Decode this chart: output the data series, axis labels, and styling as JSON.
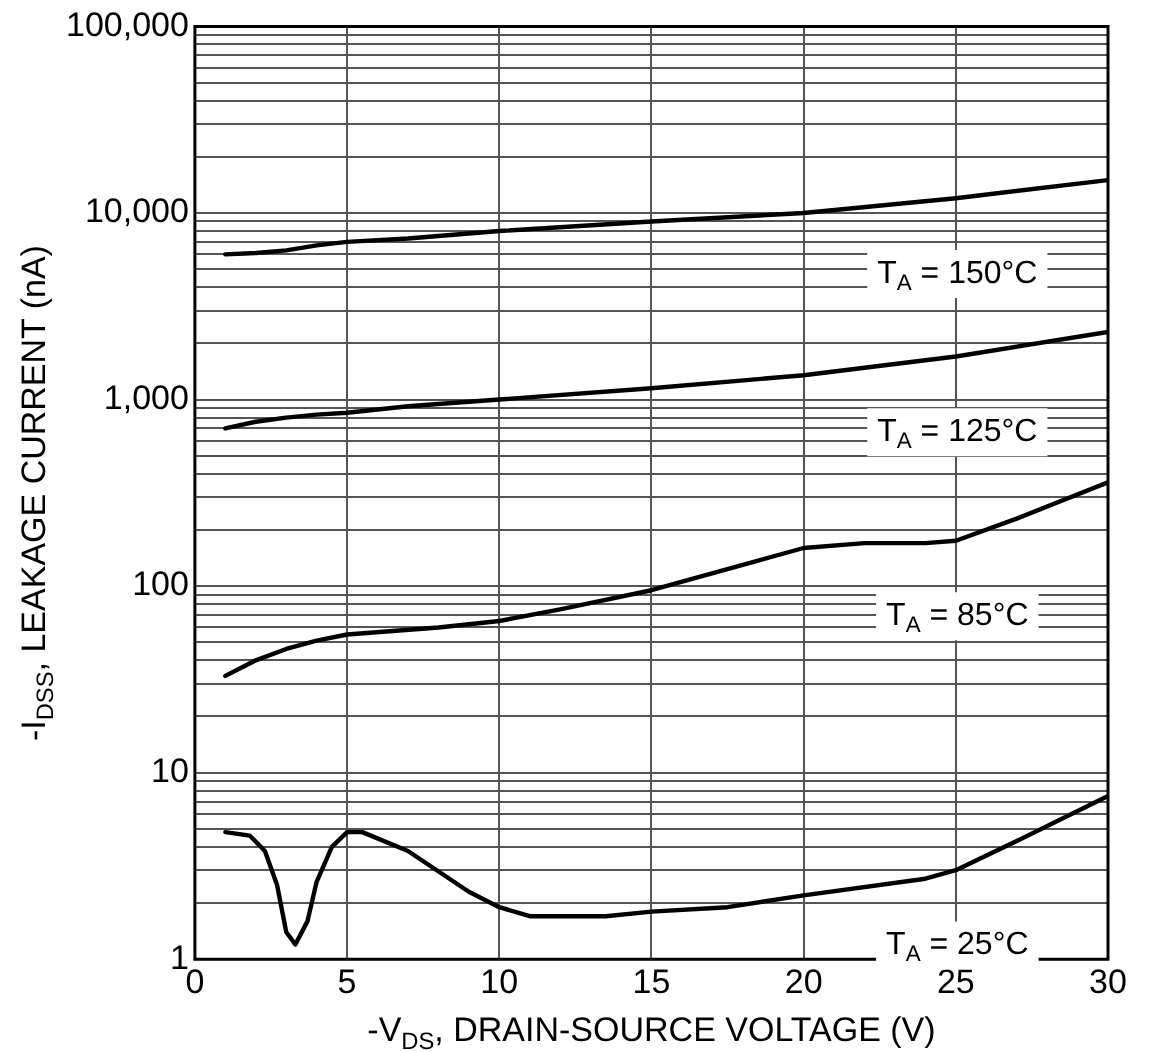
{
  "chart_data": {
    "type": "line",
    "xlabel": "-V$_{DS}$, DRAIN-SOURCE VOLTAGE (V)",
    "ylabel": "-I$_{DSS}$, LEAKAGE CURRENT (nA)",
    "log": "y",
    "grid": true,
    "legend": false,
    "marker": "none",
    "line_style": "solid",
    "xlim": [
      0,
      30
    ],
    "xticks": [
      0,
      5,
      10,
      15,
      20,
      25,
      30
    ],
    "ylim": [
      1,
      100000
    ],
    "yticks": [
      {
        "value": 1,
        "label": "1"
      },
      {
        "value": 2,
        "label": null
      },
      {
        "value": 3,
        "label": null
      },
      {
        "value": 4,
        "label": null
      },
      {
        "value": 5,
        "label": null
      },
      {
        "value": 6,
        "label": null
      },
      {
        "value": 7,
        "label": null
      },
      {
        "value": 8,
        "label": null
      },
      {
        "value": 9,
        "label": null
      },
      {
        "value": 10,
        "label": "10"
      },
      {
        "value": 20,
        "label": null
      },
      {
        "value": 30,
        "label": null
      },
      {
        "value": 40,
        "label": null
      },
      {
        "value": 50,
        "label": null
      },
      {
        "value": 60,
        "label": null
      },
      {
        "value": 70,
        "label": null
      },
      {
        "value": 80,
        "label": null
      },
      {
        "value": 90,
        "label": null
      },
      {
        "value": 100,
        "label": "100"
      },
      {
        "value": 200,
        "label": null
      },
      {
        "value": 300,
        "label": null
      },
      {
        "value": 400,
        "label": null
      },
      {
        "value": 500,
        "label": null
      },
      {
        "value": 600,
        "label": null
      },
      {
        "value": 700,
        "label": null
      },
      {
        "value": 800,
        "label": null
      },
      {
        "value": 900,
        "label": null
      },
      {
        "value": 1000,
        "label": "1,000"
      },
      {
        "value": 2000,
        "label": null
      },
      {
        "value": 3000,
        "label": null
      },
      {
        "value": 4000,
        "label": null
      },
      {
        "value": 5000,
        "label": null
      },
      {
        "value": 6000,
        "label": null
      },
      {
        "value": 7000,
        "label": null
      },
      {
        "value": 8000,
        "label": null
      },
      {
        "value": 9000,
        "label": null
      },
      {
        "value": 10000,
        "label": "10,000"
      },
      {
        "value": 20000,
        "label": null
      },
      {
        "value": 30000,
        "label": null
      },
      {
        "value": 40000,
        "label": null
      },
      {
        "value": 50000,
        "label": null
      },
      {
        "value": 60000,
        "label": null
      },
      {
        "value": 70000,
        "label": null
      },
      {
        "value": 80000,
        "label": null
      },
      {
        "value": 90000,
        "label": null
      },
      {
        "value": 100000,
        "label": "100,000"
      }
    ],
    "series": [
      {
        "name": "T$_{A}$ = 150°C",
        "color": "#000000",
        "x": [
          1,
          2,
          3,
          4,
          5,
          7,
          10,
          15,
          20,
          25,
          30
        ],
        "values": [
          6000,
          6100,
          6300,
          6700,
          7000,
          7300,
          8000,
          9000,
          10000,
          12000,
          15000
        ]
      },
      {
        "name": "T$_{A}$ = 125°C",
        "color": "#000000",
        "x": [
          1,
          2,
          3,
          4,
          5,
          7,
          10,
          15,
          20,
          25,
          30
        ],
        "values": [
          700,
          760,
          800,
          830,
          850,
          920,
          1000,
          1150,
          1350,
          1700,
          2300
        ]
      },
      {
        "name": "T$_{A}$ = 85°C",
        "color": "#000000",
        "x": [
          1,
          2,
          3,
          4,
          5,
          8,
          10,
          12,
          15,
          18,
          20,
          22,
          24,
          25,
          27,
          30
        ],
        "values": [
          33,
          40,
          46,
          51,
          55,
          60,
          65,
          75,
          95,
          130,
          160,
          170,
          170,
          175,
          230,
          360
        ]
      },
      {
        "name": "T$_{A}$ = 25°C",
        "color": "#000000",
        "x": [
          1,
          1.8,
          2.3,
          2.7,
          3,
          3.3,
          3.7,
          4,
          4.5,
          5,
          5.5,
          7,
          9,
          10,
          11,
          13.5,
          15,
          17.5,
          20,
          24,
          25,
          27,
          30
        ],
        "values": [
          4.8,
          4.6,
          3.8,
          2.5,
          1.4,
          1.2,
          1.6,
          2.6,
          4,
          4.8,
          4.8,
          3.8,
          2.3,
          1.9,
          1.7,
          1.7,
          1.8,
          1.9,
          2.2,
          2.7,
          3,
          4.3,
          7.5
        ]
      }
    ]
  }
}
